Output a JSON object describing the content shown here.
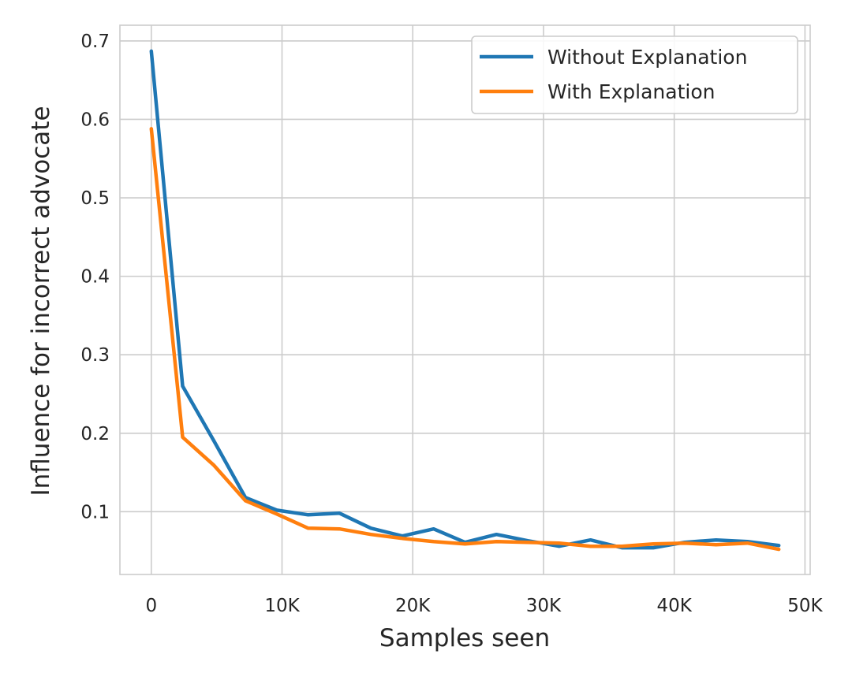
{
  "chart_data": {
    "type": "line",
    "title": "",
    "xlabel": "Samples seen",
    "ylabel": "Influence for incorrect advocate",
    "xlim": [
      -2400,
      50400
    ],
    "ylim": [
      0.02,
      0.72
    ],
    "x_ticks": [
      0,
      10000,
      20000,
      30000,
      40000,
      50000
    ],
    "x_tick_labels": [
      "0",
      "10K",
      "20K",
      "30K",
      "40K",
      "50K"
    ],
    "y_ticks": [
      0.1,
      0.2,
      0.3,
      0.4,
      0.5,
      0.6,
      0.7
    ],
    "y_tick_labels": [
      "0.1",
      "0.2",
      "0.3",
      "0.4",
      "0.5",
      "0.6",
      "0.7"
    ],
    "grid": true,
    "legend_position": "top-right",
    "x": [
      0,
      2400,
      4800,
      7200,
      9600,
      12000,
      14400,
      16800,
      19200,
      21600,
      24000,
      26400,
      28800,
      31200,
      33600,
      36000,
      38400,
      40800,
      43200,
      45600,
      48000
    ],
    "series": [
      {
        "name": "Without Explanation",
        "color": "#1f77b4",
        "values": [
          0.687,
          0.26,
          0.19,
          0.118,
          0.102,
          0.096,
          0.098,
          0.079,
          0.069,
          0.078,
          0.061,
          0.071,
          0.063,
          0.056,
          0.064,
          0.054,
          0.054,
          0.061,
          0.064,
          0.062,
          0.057
        ]
      },
      {
        "name": "With Explanation",
        "color": "#ff7f0e",
        "values": [
          0.588,
          0.195,
          0.159,
          0.114,
          0.097,
          0.079,
          0.078,
          0.071,
          0.066,
          0.062,
          0.059,
          0.062,
          0.061,
          0.06,
          0.056,
          0.056,
          0.059,
          0.06,
          0.058,
          0.06,
          0.052
        ]
      }
    ]
  }
}
